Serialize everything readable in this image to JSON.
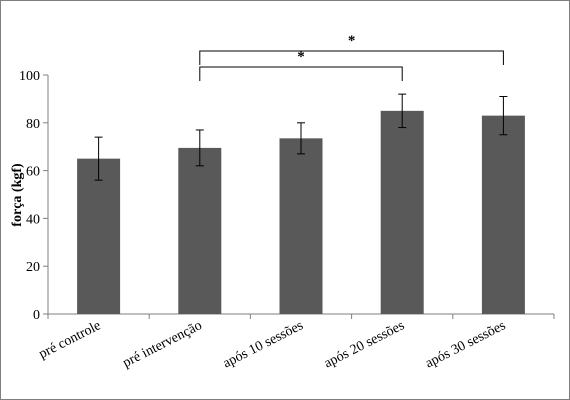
{
  "chart_data": {
    "type": "bar",
    "categories": [
      "pré controle",
      "pré intervenção",
      "após 10 sessões",
      "após 20 sessões",
      "após 30 sessões"
    ],
    "values": [
      65,
      69.5,
      73.5,
      85,
      83
    ],
    "errors": [
      9,
      7.5,
      6.5,
      7,
      8
    ],
    "ylabel": "força (kgf)",
    "ylim": [
      0,
      100
    ],
    "yticks": [
      0,
      20,
      40,
      60,
      80,
      100
    ],
    "bar_color": "#595959",
    "grid": false,
    "significance": [
      {
        "from": 1,
        "to": 3,
        "label": "*"
      },
      {
        "from": 1,
        "to": 4,
        "label": "*"
      }
    ]
  }
}
